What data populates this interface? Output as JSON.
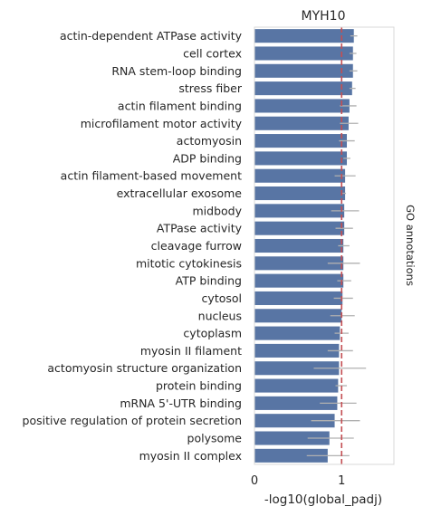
{
  "chart_data": {
    "type": "bar",
    "orientation": "horizontal",
    "title": "MYH10",
    "xlabel": "-log10(global_padj)",
    "ylabel": "",
    "right_label": "GO annotations",
    "xlim": [
      0,
      1.6
    ],
    "xticks": [
      0,
      1
    ],
    "reference_line": {
      "x": 1.0,
      "style": "dashed",
      "color": "#c44e52"
    },
    "bar_color": "#5875a4",
    "error_color": "#b0b0b0",
    "grid": false,
    "categories": [
      "actin-dependent ATPase activity",
      "cell cortex",
      "RNA stem-loop binding",
      "stress fiber",
      "actin filament binding",
      "microfilament motor activity",
      "actomyosin",
      "ADP binding",
      "actin filament-based movement",
      "extracellular exosome",
      "midbody",
      "ATPase activity",
      "cleavage furrow",
      "mitotic cytokinesis",
      "ATP binding",
      "cytosol",
      "nucleus",
      "cytoplasm",
      "myosin II filament",
      "actomyosin structure organization",
      "protein binding",
      "mRNA 5'-UTR binding",
      "positive regulation of protein secretion",
      "polysome",
      "myosin II complex"
    ],
    "values": [
      1.14,
      1.13,
      1.13,
      1.12,
      1.09,
      1.08,
      1.06,
      1.06,
      1.04,
      1.04,
      1.03,
      1.03,
      1.02,
      1.02,
      1.02,
      1.01,
      1.0,
      0.98,
      0.97,
      0.97,
      0.96,
      0.95,
      0.92,
      0.86,
      0.84
    ],
    "errors": [
      [
        1.1,
        1.18
      ],
      [
        1.09,
        1.17
      ],
      [
        1.09,
        1.18
      ],
      [
        1.09,
        1.16
      ],
      [
        0.98,
        1.17
      ],
      [
        0.98,
        1.19
      ],
      [
        0.97,
        1.15
      ],
      [
        1.02,
        1.1
      ],
      [
        0.92,
        1.16
      ],
      [
        1.01,
        1.05
      ],
      [
        0.88,
        1.2
      ],
      [
        0.93,
        1.13
      ],
      [
        0.96,
        1.09
      ],
      [
        0.84,
        1.21
      ],
      [
        0.95,
        1.11
      ],
      [
        0.91,
        1.13
      ],
      [
        0.87,
        1.15
      ],
      [
        0.92,
        1.08
      ],
      [
        0.84,
        1.13
      ],
      [
        0.68,
        1.28
      ],
      [
        0.93,
        1.06
      ],
      [
        0.75,
        1.17
      ],
      [
        0.65,
        1.21
      ],
      [
        0.61,
        1.14
      ],
      [
        0.6,
        1.09
      ]
    ]
  }
}
